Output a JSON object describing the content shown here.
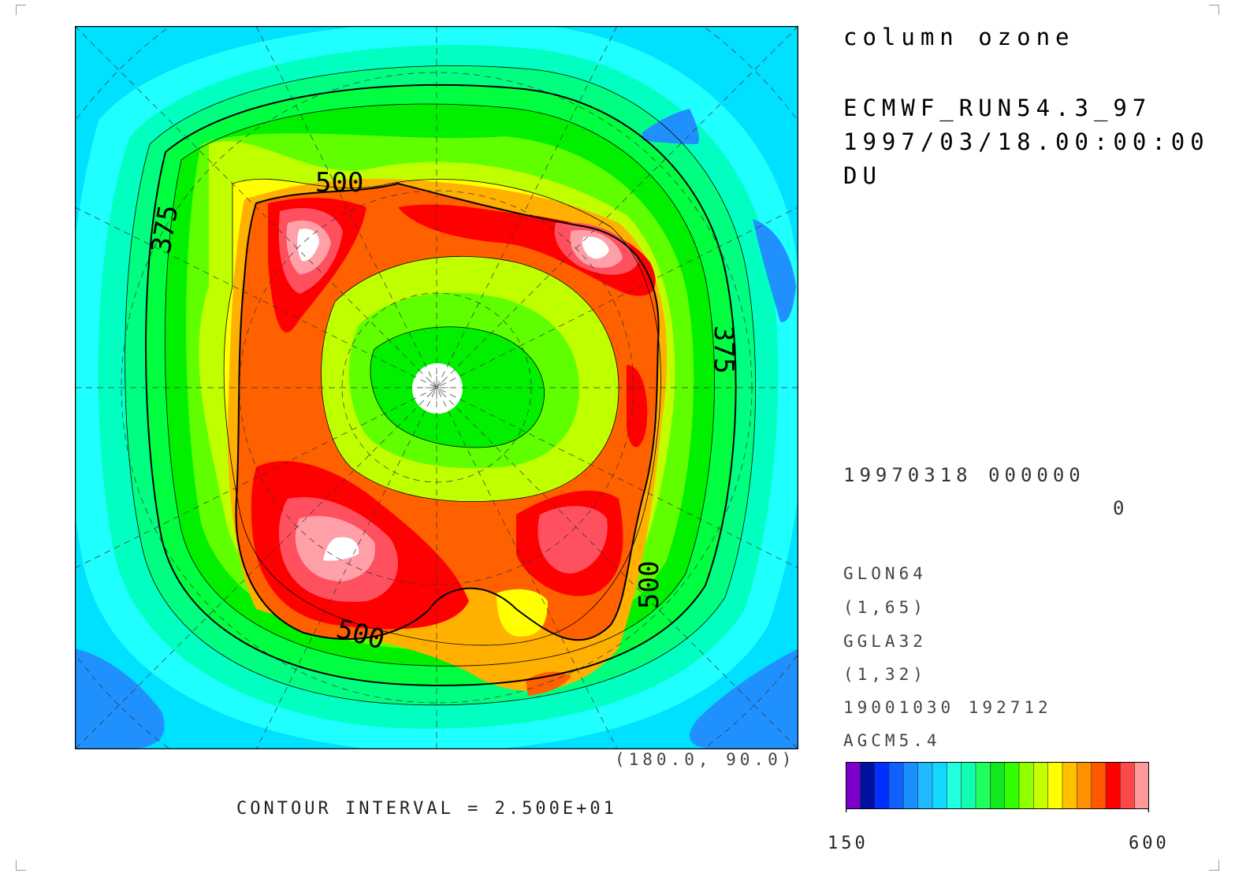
{
  "title": "column ozone",
  "run_name": "ECMWF_RUN54.3_97",
  "valid_time": "1997/03/18.00:00:00",
  "units": "DU",
  "date_line": "19970318 000000",
  "step": "0",
  "meta": [
    "GLON64",
    "(1,65)",
    "GGLA32",
    "(1,32)",
    "19001030 192712",
    "AGCM5.4"
  ],
  "corner_coord": "(180.0, 90.0)",
  "contour_interval": "CONTOUR INTERVAL = 2.500E+01",
  "contour_labels": [
    "500",
    "375",
    "375",
    "500",
    "500"
  ],
  "colorbar": {
    "min_label": "150",
    "max_label": "600",
    "colors": [
      "#7d00c8",
      "#0010a0",
      "#0030ff",
      "#1060ff",
      "#1890ff",
      "#20b8ff",
      "#10d8ff",
      "#20ffe0",
      "#10ffb0",
      "#20ff60",
      "#10e820",
      "#30ff00",
      "#90ff00",
      "#c8ff00",
      "#ffff00",
      "#ffc000",
      "#ff9000",
      "#ff5800",
      "#ff0000",
      "#ff4848",
      "#ff9898"
    ]
  },
  "map": {
    "projection": "north polar stereographic",
    "palette": [
      "#00e0ff",
      "#20ffff",
      "#00ffc0",
      "#00ff80",
      "#00ff40",
      "#00f000",
      "#60ff00",
      "#c0ff00",
      "#ffff00",
      "#ffb000",
      "#ff6000",
      "#ff0000",
      "#ff5060",
      "#ffa0a8",
      "#ffffff"
    ]
  }
}
